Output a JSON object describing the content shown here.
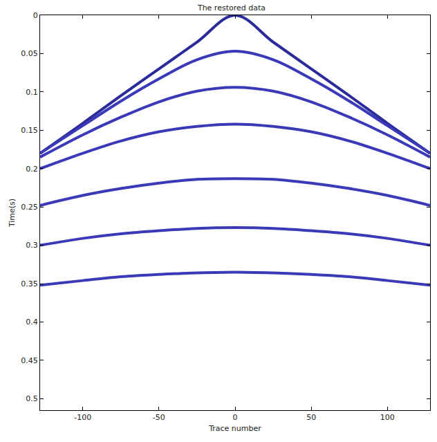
{
  "chart_data": {
    "type": "line",
    "title": "The restored data",
    "x_label": "Trace number",
    "y_label": "Time(s)",
    "x": [
      -128,
      -100,
      -75,
      -50,
      -25,
      0,
      25,
      50,
      75,
      100,
      128
    ],
    "series": [
      {
        "color": "#2a2a9a",
        "values": [
          0.18,
          0.141,
          0.105,
          0.07,
          0.035,
          0.0,
          0.035,
          0.07,
          0.105,
          0.141,
          0.18
        ]
      },
      {
        "color": "#3a3ab8",
        "values": [
          0.18,
          0.144,
          0.112,
          0.083,
          0.058,
          0.047,
          0.058,
          0.083,
          0.112,
          0.144,
          0.18
        ]
      },
      {
        "color": "#3a3ab8",
        "values": [
          0.185,
          0.156,
          0.133,
          0.113,
          0.099,
          0.094,
          0.099,
          0.113,
          0.133,
          0.156,
          0.185
        ]
      },
      {
        "color": "#3a3ab8",
        "values": [
          0.2,
          0.18,
          0.164,
          0.152,
          0.145,
          0.142,
          0.145,
          0.152,
          0.164,
          0.18,
          0.2
        ]
      },
      {
        "color": "#3a3ab8",
        "values": [
          0.248,
          0.235,
          0.226,
          0.219,
          0.214,
          0.213,
          0.214,
          0.219,
          0.226,
          0.235,
          0.248
        ]
      },
      {
        "color": "#3a3ab8",
        "values": [
          0.3,
          0.291,
          0.285,
          0.281,
          0.278,
          0.277,
          0.278,
          0.281,
          0.285,
          0.291,
          0.3
        ]
      },
      {
        "color": "#3a3ab8",
        "values": [
          0.352,
          0.346,
          0.341,
          0.338,
          0.336,
          0.335,
          0.336,
          0.338,
          0.341,
          0.346,
          0.352
        ]
      }
    ],
    "xlim": [
      -128,
      128
    ],
    "xticks": [
      -100,
      -50,
      0,
      50,
      100
    ],
    "ylim": [
      0,
      0.515
    ],
    "yticks": [
      0,
      0.05,
      0.1,
      0.15,
      0.2,
      0.25,
      0.3,
      0.35,
      0.4,
      0.45,
      0.5
    ],
    "grid": false
  }
}
